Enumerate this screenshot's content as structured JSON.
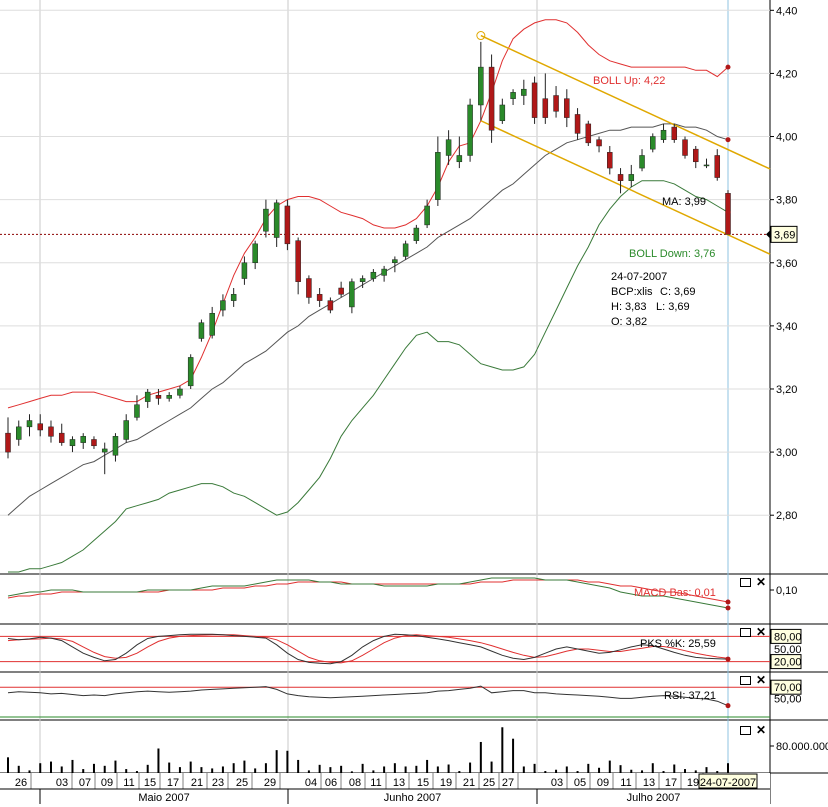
{
  "chart_data": {
    "type": "candlestick",
    "symbol": "BCP:xlis",
    "price_axis": {
      "ylim": [
        2.62,
        4.42
      ],
      "ticks": [
        "4,40",
        "4,20",
        "4,00",
        "3,80",
        "3,60",
        "3,40",
        "3,20",
        "3,00",
        "2,80"
      ],
      "tick_values": [
        4.4,
        4.2,
        4.0,
        3.8,
        3.6,
        3.4,
        3.2,
        3.0,
        2.8
      ]
    },
    "current_price": {
      "label": "3,69",
      "value": 3.69
    },
    "x_labels": [
      "26",
      "03",
      "07",
      "09",
      "11",
      "15",
      "17",
      "21",
      "23",
      "25",
      "29",
      "04",
      "06",
      "08",
      "11",
      "13",
      "15",
      "19",
      "21",
      "25",
      "27",
      "03",
      "05",
      "09",
      "11",
      "13",
      "17",
      "19",
      "24-07-2007"
    ],
    "months": [
      "Maio 2007",
      "Junho 2007",
      "Julho 2007"
    ],
    "candles": [
      [
        3.06,
        3.11,
        2.98,
        3.0
      ],
      [
        3.04,
        3.1,
        3.02,
        3.08
      ],
      [
        3.08,
        3.12,
        3.05,
        3.1
      ],
      [
        3.09,
        3.12,
        3.05,
        3.07
      ],
      [
        3.08,
        3.1,
        3.03,
        3.05
      ],
      [
        3.06,
        3.09,
        3.02,
        3.03
      ],
      [
        3.02,
        3.05,
        3.0,
        3.04
      ],
      [
        3.03,
        3.06,
        3.01,
        3.05
      ],
      [
        3.04,
        3.05,
        3.01,
        3.02
      ],
      [
        3.0,
        3.03,
        2.93,
        3.01
      ],
      [
        2.99,
        3.06,
        2.97,
        3.05
      ],
      [
        3.04,
        3.12,
        3.03,
        3.1
      ],
      [
        3.11,
        3.18,
        3.1,
        3.15
      ],
      [
        3.16,
        3.2,
        3.14,
        3.19
      ],
      [
        3.18,
        3.2,
        3.15,
        3.17
      ],
      [
        3.17,
        3.19,
        3.16,
        3.18
      ],
      [
        3.18,
        3.21,
        3.17,
        3.2
      ],
      [
        3.21,
        3.31,
        3.2,
        3.3
      ],
      [
        3.36,
        3.42,
        3.35,
        3.41
      ],
      [
        3.37,
        3.46,
        3.36,
        3.44
      ],
      [
        3.45,
        3.5,
        3.43,
        3.48
      ],
      [
        3.48,
        3.52,
        3.46,
        3.5
      ],
      [
        3.55,
        3.62,
        3.53,
        3.6
      ],
      [
        3.6,
        3.67,
        3.58,
        3.66
      ],
      [
        3.7,
        3.8,
        3.68,
        3.77
      ],
      [
        3.68,
        3.8,
        3.65,
        3.79
      ],
      [
        3.78,
        3.8,
        3.64,
        3.66
      ],
      [
        3.67,
        3.68,
        3.5,
        3.54
      ],
      [
        3.55,
        3.56,
        3.47,
        3.49
      ],
      [
        3.5,
        3.52,
        3.46,
        3.48
      ],
      [
        3.48,
        3.49,
        3.44,
        3.45
      ],
      [
        3.52,
        3.54,
        3.49,
        3.5
      ],
      [
        3.46,
        3.55,
        3.44,
        3.54
      ],
      [
        3.54,
        3.56,
        3.52,
        3.55
      ],
      [
        3.55,
        3.58,
        3.54,
        3.57
      ],
      [
        3.56,
        3.59,
        3.54,
        3.58
      ],
      [
        3.6,
        3.62,
        3.57,
        3.61
      ],
      [
        3.62,
        3.67,
        3.61,
        3.66
      ],
      [
        3.67,
        3.72,
        3.66,
        3.71
      ],
      [
        3.72,
        3.8,
        3.71,
        3.78
      ],
      [
        3.8,
        4.0,
        3.78,
        3.95
      ],
      [
        3.94,
        4.02,
        3.91,
        3.99
      ],
      [
        3.92,
        4.0,
        3.9,
        3.94
      ],
      [
        3.94,
        4.12,
        3.92,
        4.1
      ],
      [
        4.1,
        4.3,
        4.05,
        4.22
      ],
      [
        4.22,
        4.26,
        3.98,
        4.02
      ],
      [
        4.05,
        4.12,
        4.04,
        4.1
      ],
      [
        4.12,
        4.15,
        4.1,
        4.14
      ],
      [
        4.13,
        4.18,
        4.1,
        4.15
      ],
      [
        4.17,
        4.19,
        4.04,
        4.06
      ],
      [
        4.12,
        4.2,
        4.04,
        4.06
      ],
      [
        4.13,
        4.16,
        4.06,
        4.08
      ],
      [
        4.12,
        4.15,
        4.03,
        4.06
      ],
      [
        4.07,
        4.09,
        3.99,
        4.01
      ],
      [
        4.04,
        4.05,
        3.97,
        3.98
      ],
      [
        3.99,
        4.0,
        3.95,
        3.97
      ],
      [
        3.95,
        3.97,
        3.88,
        3.9
      ],
      [
        3.88,
        3.9,
        3.82,
        3.86
      ],
      [
        3.86,
        3.91,
        3.84,
        3.88
      ],
      [
        3.9,
        3.96,
        3.89,
        3.94
      ],
      [
        3.96,
        4.01,
        3.95,
        4.0
      ],
      [
        3.99,
        4.04,
        3.98,
        4.02
      ],
      [
        4.03,
        4.04,
        3.98,
        3.99
      ],
      [
        3.99,
        4.0,
        3.93,
        3.94
      ],
      [
        3.96,
        3.97,
        3.9,
        3.92
      ],
      [
        3.91,
        3.93,
        3.9,
        3.91
      ],
      [
        3.94,
        3.96,
        3.86,
        3.87
      ],
      [
        3.82,
        3.83,
        3.69,
        3.69
      ]
    ],
    "ma": [
      2.8,
      2.83,
      2.86,
      2.88,
      2.9,
      2.92,
      2.94,
      2.96,
      2.97,
      2.99,
      3.01,
      3.03,
      3.04,
      3.06,
      3.08,
      3.1,
      3.12,
      3.14,
      3.17,
      3.2,
      3.22,
      3.25,
      3.28,
      3.3,
      3.32,
      3.35,
      3.38,
      3.4,
      3.43,
      3.45,
      3.47,
      3.49,
      3.51,
      3.53,
      3.55,
      3.57,
      3.59,
      3.61,
      3.63,
      3.65,
      3.68,
      3.7,
      3.72,
      3.74,
      3.77,
      3.8,
      3.83,
      3.85,
      3.88,
      3.91,
      3.94,
      3.96,
      3.98,
      3.99,
      4.0,
      4.01,
      4.02,
      4.02,
      4.03,
      4.03,
      4.03,
      4.04,
      4.04,
      4.03,
      4.03,
      4.02,
      4.0,
      3.99
    ],
    "boll_up": [
      3.14,
      3.15,
      3.16,
      3.17,
      3.18,
      3.18,
      3.19,
      3.19,
      3.19,
      3.18,
      3.17,
      3.16,
      3.16,
      3.18,
      3.19,
      3.2,
      3.21,
      3.23,
      3.3,
      3.38,
      3.47,
      3.56,
      3.63,
      3.68,
      3.74,
      3.78,
      3.8,
      3.81,
      3.81,
      3.8,
      3.78,
      3.76,
      3.75,
      3.74,
      3.72,
      3.71,
      3.71,
      3.72,
      3.74,
      3.78,
      3.84,
      3.92,
      3.97,
      3.98,
      4.05,
      4.14,
      4.24,
      4.31,
      4.34,
      4.36,
      4.37,
      4.37,
      4.36,
      4.33,
      4.29,
      4.26,
      4.24,
      4.23,
      4.22,
      4.22,
      4.22,
      4.22,
      4.22,
      4.22,
      4.21,
      4.21,
      4.19,
      4.22
    ],
    "boll_down": [
      2.62,
      2.62,
      2.63,
      2.63,
      2.64,
      2.65,
      2.67,
      2.69,
      2.72,
      2.75,
      2.78,
      2.82,
      2.83,
      2.84,
      2.85,
      2.87,
      2.88,
      2.89,
      2.9,
      2.9,
      2.89,
      2.87,
      2.86,
      2.84,
      2.82,
      2.8,
      2.81,
      2.84,
      2.88,
      2.92,
      2.98,
      3.05,
      3.1,
      3.14,
      3.18,
      3.23,
      3.28,
      3.33,
      3.37,
      3.38,
      3.35,
      3.35,
      3.34,
      3.31,
      3.28,
      3.27,
      3.26,
      3.26,
      3.27,
      3.31,
      3.38,
      3.45,
      3.52,
      3.59,
      3.65,
      3.72,
      3.77,
      3.81,
      3.84,
      3.86,
      3.86,
      3.86,
      3.85,
      3.83,
      3.81,
      3.8,
      3.78,
      3.76
    ],
    "channel": {
      "upper": [
        [
          44,
          4.32
        ],
        [
          72,
          3.88
        ]
      ],
      "lower": [
        [
          44,
          4.05
        ],
        [
          72,
          3.61
        ]
      ]
    },
    "labels": {
      "boll_up": "BOLL Up: 4,22",
      "ma": "MA: 3,99",
      "boll_down": "BOLL Down: 3,76"
    },
    "ohlc_info": {
      "date": "24-07-2007",
      "symbol": "BCP:xlis",
      "close": "C: 3,69",
      "high": "H: 3,83",
      "low": "L: 3,69",
      "open": "O: 3,82"
    },
    "macd": {
      "label": "MACD Bas: 0,01",
      "ylim": [
        -0.06,
        0.16
      ],
      "ticks": [
        "0,10"
      ],
      "tick_values": [
        0.1
      ],
      "macd": [
        0.07,
        0.08,
        0.09,
        0.09,
        0.1,
        0.1,
        0.1,
        0.09,
        0.09,
        0.09,
        0.09,
        0.09,
        0.09,
        0.1,
        0.1,
        0.1,
        0.1,
        0.1,
        0.11,
        0.12,
        0.12,
        0.12,
        0.12,
        0.13,
        0.14,
        0.15,
        0.15,
        0.15,
        0.15,
        0.14,
        0.14,
        0.13,
        0.13,
        0.13,
        0.13,
        0.12,
        0.12,
        0.12,
        0.12,
        0.12,
        0.13,
        0.13,
        0.13,
        0.14,
        0.15,
        0.16,
        0.16,
        0.16,
        0.16,
        0.16,
        0.15,
        0.15,
        0.15,
        0.14,
        0.13,
        0.12,
        0.11,
        0.09,
        0.08,
        0.07,
        0.07,
        0.07,
        0.06,
        0.05,
        0.04,
        0.03,
        0.02,
        0.01
      ],
      "signal": [
        0.06,
        0.07,
        0.07,
        0.08,
        0.08,
        0.09,
        0.09,
        0.09,
        0.09,
        0.09,
        0.09,
        0.09,
        0.09,
        0.09,
        0.09,
        0.1,
        0.1,
        0.1,
        0.1,
        0.1,
        0.11,
        0.11,
        0.11,
        0.12,
        0.12,
        0.13,
        0.13,
        0.14,
        0.14,
        0.14,
        0.14,
        0.14,
        0.13,
        0.13,
        0.13,
        0.13,
        0.13,
        0.13,
        0.13,
        0.13,
        0.13,
        0.13,
        0.13,
        0.13,
        0.14,
        0.14,
        0.14,
        0.15,
        0.15,
        0.15,
        0.15,
        0.15,
        0.15,
        0.15,
        0.14,
        0.14,
        0.13,
        0.12,
        0.12,
        0.11,
        0.1,
        0.09,
        0.09,
        0.08,
        0.07,
        0.06,
        0.05,
        0.04
      ]
    },
    "stochastic": {
      "label": "PKS %K: 25,59",
      "ylim": [
        0,
        100
      ],
      "ticks": [
        "80,00",
        "50,00",
        "20,00"
      ],
      "tick_values": [
        80,
        50,
        20
      ],
      "k": [
        75,
        72,
        74,
        78,
        76,
        70,
        55,
        40,
        30,
        22,
        25,
        40,
        60,
        75,
        80,
        82,
        84,
        85,
        85,
        85,
        84,
        82,
        80,
        78,
        76,
        60,
        40,
        25,
        18,
        16,
        15,
        20,
        35,
        55,
        70,
        80,
        85,
        84,
        82,
        78,
        74,
        70,
        65,
        60,
        55,
        45,
        35,
        28,
        25,
        30,
        40,
        50,
        55,
        50,
        45,
        40,
        42,
        48,
        55,
        60,
        58,
        50,
        42,
        35,
        30,
        28,
        27,
        26
      ],
      "d": [
        70,
        72,
        73,
        74,
        76,
        74,
        68,
        55,
        42,
        32,
        28,
        30,
        40,
        55,
        68,
        76,
        80,
        82,
        83,
        84,
        84,
        84,
        82,
        80,
        78,
        72,
        60,
        45,
        30,
        22,
        18,
        17,
        22,
        35,
        50,
        65,
        76,
        82,
        84,
        82,
        80,
        78,
        74,
        70,
        65,
        58,
        50,
        42,
        35,
        30,
        32,
        38,
        45,
        50,
        50,
        47,
        44,
        44,
        48,
        52,
        56,
        56,
        52,
        46,
        40,
        35,
        31,
        28
      ]
    },
    "rsi": {
      "label": "RSI: 37,21",
      "ylim": [
        15,
        90
      ],
      "ticks": [
        "70,00",
        "50,00"
      ],
      "tick_values": [
        70,
        50
      ],
      "values": [
        60,
        62,
        61,
        60,
        58,
        59,
        57,
        55,
        56,
        55,
        58,
        60,
        62,
        63,
        62,
        61,
        62,
        63,
        65,
        66,
        67,
        68,
        69,
        70,
        71,
        66,
        58,
        55,
        53,
        52,
        51,
        52,
        53,
        54,
        55,
        56,
        57,
        58,
        59,
        60,
        63,
        64,
        66,
        68,
        72,
        60,
        62,
        64,
        64,
        60,
        60,
        58,
        57,
        56,
        55,
        54,
        52,
        50,
        50,
        52,
        54,
        55,
        54,
        52,
        50,
        49,
        45,
        37
      ]
    },
    "volume": {
      "ylim": [
        0,
        120000000
      ],
      "ticks": [
        "80.000.000"
      ],
      "tick_values": [
        80000000
      ],
      "values": [
        48,
        22,
        8,
        30,
        35,
        20,
        40,
        12,
        28,
        22,
        38,
        12,
        6,
        25,
        75,
        32,
        18,
        35,
        18,
        14,
        20,
        30,
        38,
        14,
        30,
        70,
        68,
        40,
        8,
        25,
        18,
        22,
        5,
        28,
        8,
        20,
        30,
        20,
        22,
        40,
        20,
        26,
        6,
        32,
        95,
        35,
        140,
        105,
        20,
        28,
        6,
        10,
        20,
        6,
        28,
        16,
        38,
        24,
        10,
        8,
        30,
        6,
        26,
        12,
        8,
        18,
        6,
        30
      ],
      "scale_millions": true
    },
    "panel_controls": [
      "maximize",
      "close"
    ]
  }
}
